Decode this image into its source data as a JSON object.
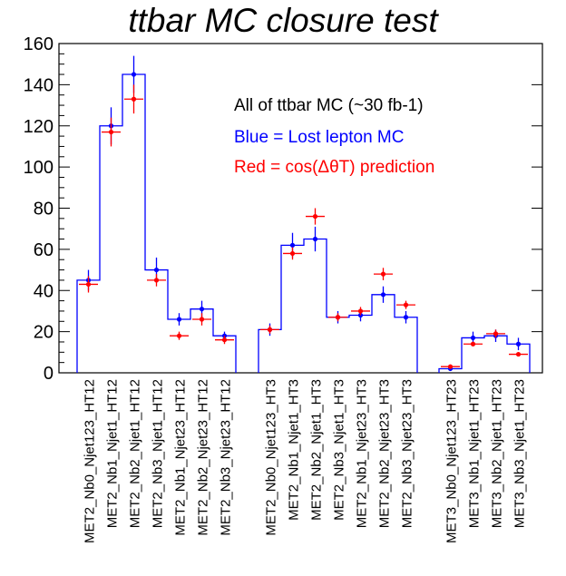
{
  "title": "ttbar MC closure test",
  "legend": [
    "All of ttbar MC (~30 fb-1)",
    "Blue = Lost lepton MC",
    "Red = cos(ΔθT) prediction"
  ],
  "chart_data": {
    "type": "bar",
    "title": "ttbar MC closure test",
    "ylim": [
      0,
      160
    ],
    "yticks": [
      "0",
      "20",
      "40",
      "60",
      "80",
      "100",
      "120",
      "140",
      "160"
    ],
    "grid": false,
    "legend_position": "top-right",
    "colors": {
      "mc": "#0000ff",
      "prediction": "#ff0000"
    },
    "groups": [
      {
        "categories": [
          "MET2_Nb0_Njet123_HT12",
          "MET2_Nb1_Njet1_HT12",
          "MET2_Nb2_Njet1_HT12",
          "MET2_Nb3_Njet1_HT12",
          "MET2_Nb1_Njet23_HT12",
          "MET2_Nb2_Njet23_HT12",
          "MET2_Nb3_Njet23_HT12"
        ],
        "mc": [
          45,
          120,
          145,
          50,
          26,
          31,
          18
        ],
        "mc_err": [
          5,
          9,
          9,
          6,
          3,
          4,
          2
        ],
        "prediction": [
          43,
          117,
          133,
          45,
          18,
          26,
          16
        ],
        "prediction_err": [
          4,
          7,
          7,
          3,
          2,
          3,
          2
        ]
      },
      {
        "categories": [
          "MET2_Nb0_Njet123_HT3",
          "MET2_Nb1_Njet1_HT3",
          "MET2_Nb2_Njet1_HT3",
          "MET2_Nb3_Njet1_HT3",
          "MET2_Nb1_Njet23_HT3",
          "MET2_Nb2_Njet23_HT3",
          "MET2_Nb3_Njet23_HT3"
        ],
        "mc": [
          21,
          62,
          65,
          27,
          28,
          38,
          27
        ],
        "mc_err": [
          3,
          6,
          6,
          3,
          3,
          4,
          3
        ],
        "prediction": [
          21,
          58,
          76,
          27,
          30,
          48,
          33
        ],
        "prediction_err": [
          2,
          3,
          4,
          2,
          2,
          3,
          2
        ]
      },
      {
        "categories": [
          "MET3_Nb0_Njet123_HT23",
          "MET3_Nb1_Njet1_HT23",
          "MET3_Nb2_Njet1_HT23",
          "MET3_Nb3_Njet1_HT23"
        ],
        "mc": [
          2,
          17,
          18,
          14
        ],
        "mc_err": [
          1,
          3,
          3,
          3
        ],
        "prediction": [
          3,
          14,
          19,
          9
        ],
        "prediction_err": [
          1,
          1,
          2,
          1
        ]
      }
    ]
  }
}
